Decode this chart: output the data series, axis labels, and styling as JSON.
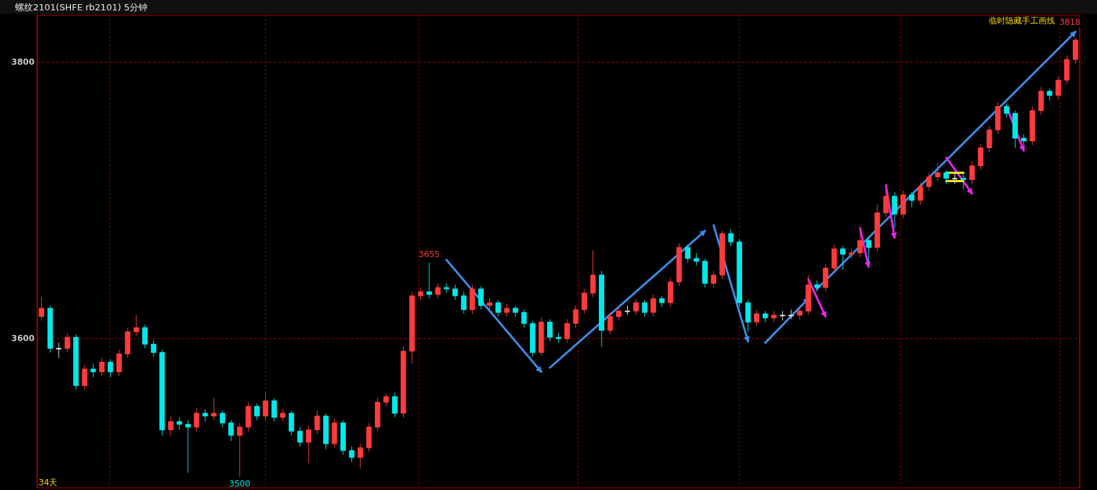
{
  "chart_data": {
    "type": "candlestick",
    "title": "螺纹2101(SHFE rb2101)  5分钟",
    "categories": [
      null,
      null,
      null,
      null,
      null,
      null,
      null,
      null,
      null,
      null,
      null,
      null,
      null,
      null,
      null,
      null,
      null,
      null,
      null,
      null,
      null,
      null,
      null,
      null,
      null,
      null,
      null,
      null,
      null,
      null,
      null,
      null,
      null,
      null,
      null,
      null,
      null,
      null,
      null,
      null,
      null,
      null,
      null,
      null,
      null,
      null,
      null,
      null,
      null,
      null,
      null,
      null,
      null,
      null,
      null,
      null,
      null,
      null,
      null,
      null,
      null,
      null,
      null,
      null,
      null,
      null,
      null,
      null,
      null,
      null,
      null,
      null,
      null,
      null,
      null,
      null,
      null,
      null,
      null,
      null,
      null,
      null,
      null,
      null,
      null,
      null,
      null,
      null,
      null,
      null,
      null,
      null,
      null,
      null,
      null,
      null,
      null,
      null,
      null,
      null,
      null,
      null,
      null,
      null,
      null,
      null,
      null,
      null,
      null,
      null,
      null,
      null,
      null,
      null,
      null,
      null,
      null,
      null,
      null,
      null,
      null
    ],
    "ohlc": [
      [
        3616,
        3630,
        3613,
        3622
      ],
      [
        3622,
        3624,
        3590,
        3593
      ],
      [
        3593,
        3597,
        3586,
        3593
      ],
      [
        3593,
        3604,
        3590,
        3601
      ],
      [
        3601,
        3603,
        3563,
        3566
      ],
      [
        3566,
        3581,
        3563,
        3578
      ],
      [
        3578,
        3582,
        3572,
        3576
      ],
      [
        3576,
        3586,
        3573,
        3583
      ],
      [
        3583,
        3585,
        3572,
        3576
      ],
      [
        3576,
        3592,
        3573,
        3589
      ],
      [
        3589,
        3608,
        3586,
        3605
      ],
      [
        3605,
        3617,
        3602,
        3608
      ],
      [
        3608,
        3610,
        3593,
        3596
      ],
      [
        3596,
        3599,
        3587,
        3590
      ],
      [
        3590,
        3592,
        3530,
        3534
      ],
      [
        3534,
        3544,
        3530,
        3540
      ],
      [
        3540,
        3543,
        3534,
        3538
      ],
      [
        3538,
        3541,
        3503,
        3536
      ],
      [
        3536,
        3550,
        3533,
        3546
      ],
      [
        3546,
        3549,
        3540,
        3544
      ],
      [
        3544,
        3557,
        3541,
        3546
      ],
      [
        3546,
        3548,
        3536,
        3539
      ],
      [
        3539,
        3541,
        3526,
        3530
      ],
      [
        3530,
        3539,
        3500,
        3536
      ],
      [
        3536,
        3554,
        3533,
        3551
      ],
      [
        3551,
        3553,
        3541,
        3544
      ],
      [
        3544,
        3561,
        3541,
        3555
      ],
      [
        3555,
        3557,
        3540,
        3543
      ],
      [
        3543,
        3549,
        3540,
        3546
      ],
      [
        3546,
        3548,
        3530,
        3533
      ],
      [
        3533,
        3536,
        3522,
        3525
      ],
      [
        3525,
        3537,
        3510,
        3534
      ],
      [
        3534,
        3548,
        3531,
        3544
      ],
      [
        3544,
        3546,
        3520,
        3524
      ],
      [
        3524,
        3542,
        3521,
        3539
      ],
      [
        3539,
        3541,
        3516,
        3519
      ],
      [
        3519,
        3522,
        3511,
        3514
      ],
      [
        3514,
        3524,
        3506,
        3521
      ],
      [
        3521,
        3539,
        3518,
        3536
      ],
      [
        3536,
        3557,
        3533,
        3554
      ],
      [
        3554,
        3560,
        3551,
        3558
      ],
      [
        3558,
        3561,
        3543,
        3546
      ],
      [
        3546,
        3594,
        3543,
        3591
      ],
      [
        3591,
        3634,
        3582,
        3631
      ],
      [
        3631,
        3637,
        3628,
        3634
      ],
      [
        3634,
        3655,
        3629,
        3632
      ],
      [
        3632,
        3640,
        3629,
        3637
      ],
      [
        3637,
        3640,
        3633,
        3636
      ],
      [
        3636,
        3639,
        3628,
        3631
      ],
      [
        3631,
        3634,
        3618,
        3621
      ],
      [
        3621,
        3639,
        3618,
        3636
      ],
      [
        3636,
        3638,
        3621,
        3624
      ],
      [
        3624,
        3629,
        3621,
        3626
      ],
      [
        3626,
        3628,
        3616,
        3619
      ],
      [
        3619,
        3625,
        3616,
        3622
      ],
      [
        3622,
        3624,
        3616,
        3619
      ],
      [
        3619,
        3621,
        3608,
        3611
      ],
      [
        3611,
        3613,
        3587,
        3590
      ],
      [
        3590,
        3615,
        3588,
        3612
      ],
      [
        3612,
        3614,
        3598,
        3601
      ],
      [
        3601,
        3604,
        3597,
        3600
      ],
      [
        3600,
        3614,
        3597,
        3611
      ],
      [
        3611,
        3624,
        3608,
        3621
      ],
      [
        3621,
        3636,
        3618,
        3633
      ],
      [
        3633,
        3664,
        3630,
        3646
      ],
      [
        3646,
        3649,
        3594,
        3606
      ],
      [
        3606,
        3619,
        3603,
        3616
      ],
      [
        3616,
        3623,
        3613,
        3620
      ],
      [
        3620,
        3624,
        3617,
        3620
      ],
      [
        3620,
        3629,
        3617,
        3626
      ],
      [
        3626,
        3628,
        3616,
        3619
      ],
      [
        3619,
        3632,
        3616,
        3629
      ],
      [
        3629,
        3631,
        3623,
        3626
      ],
      [
        3626,
        3644,
        3623,
        3641
      ],
      [
        3641,
        3669,
        3638,
        3666
      ],
      [
        3666,
        3668,
        3655,
        3658
      ],
      [
        3658,
        3662,
        3653,
        3656
      ],
      [
        3656,
        3658,
        3637,
        3640
      ],
      [
        3640,
        3649,
        3637,
        3646
      ],
      [
        3646,
        3678,
        3643,
        3676
      ],
      [
        3676,
        3679,
        3667,
        3670
      ],
      [
        3670,
        3672,
        3623,
        3626
      ],
      [
        3626,
        3628,
        3605,
        3612
      ],
      [
        3612,
        3621,
        3609,
        3618
      ],
      [
        3618,
        3620,
        3612,
        3615
      ],
      [
        3615,
        3620,
        3612,
        3617
      ],
      [
        3617,
        3620,
        3613,
        3617
      ],
      [
        3617,
        3621,
        3614,
        3617
      ],
      [
        3617,
        3624,
        3614,
        3620
      ],
      [
        3620,
        3646,
        3617,
        3639
      ],
      [
        3639,
        3642,
        3634,
        3637
      ],
      [
        3637,
        3654,
        3634,
        3651
      ],
      [
        3651,
        3668,
        3648,
        3665
      ],
      [
        3665,
        3667,
        3650,
        3661
      ],
      [
        3661,
        3665,
        3658,
        3662
      ],
      [
        3662,
        3677,
        3659,
        3671
      ],
      [
        3671,
        3673,
        3655,
        3666
      ],
      [
        3666,
        3697,
        3663,
        3691
      ],
      [
        3691,
        3710,
        3688,
        3703
      ],
      [
        3703,
        3706,
        3680,
        3690
      ],
      [
        3690,
        3707,
        3687,
        3704
      ],
      [
        3704,
        3706,
        3695,
        3700
      ],
      [
        3700,
        3713,
        3697,
        3710
      ],
      [
        3710,
        3720,
        3707,
        3717
      ],
      [
        3717,
        3727,
        3714,
        3720
      ],
      [
        3720,
        3722,
        3712,
        3716
      ],
      [
        3716,
        3720,
        3712,
        3716
      ],
      [
        3716,
        3719,
        3708,
        3715
      ],
      [
        3715,
        3728,
        3712,
        3725
      ],
      [
        3725,
        3741,
        3722,
        3738
      ],
      [
        3738,
        3754,
        3735,
        3751
      ],
      [
        3751,
        3771,
        3748,
        3768
      ],
      [
        3768,
        3770,
        3760,
        3763
      ],
      [
        3763,
        3765,
        3738,
        3745
      ],
      [
        3745,
        3748,
        3740,
        3743
      ],
      [
        3743,
        3768,
        3740,
        3765
      ],
      [
        3765,
        3782,
        3762,
        3779
      ],
      [
        3779,
        3781,
        3772,
        3776
      ],
      [
        3776,
        3790,
        3773,
        3787
      ],
      [
        3787,
        3805,
        3784,
        3802
      ],
      [
        3802,
        3818,
        3799,
        3816
      ]
    ],
    "series": [
      {
        "type": "line",
        "color": "#3a8ee6",
        "values": [
          null,
          null,
          null,
          null,
          null,
          null,
          null,
          null,
          null,
          null,
          null,
          null,
          null,
          null,
          null,
          null,
          null,
          null,
          null,
          null,
          null,
          null,
          null,
          null,
          null,
          null,
          null,
          null,
          null,
          null,
          null,
          null,
          null,
          null,
          null,
          null,
          null,
          null,
          null,
          null,
          null,
          null,
          null,
          null,
          null,
          null,
          null,
          3657,
          null,
          null,
          null,
          null,
          null,
          null,
          null,
          null,
          null,
          null,
          3576,
          null,
          null,
          null,
          null,
          null,
          null,
          null,
          null,
          null,
          null,
          null,
          null,
          null,
          null,
          null,
          null,
          null,
          null,
          null,
          null,
          null,
          null,
          null,
          null,
          null,
          null,
          null,
          null,
          null,
          null,
          null,
          null,
          null,
          null,
          null,
          null,
          null,
          null,
          null,
          null,
          null,
          null,
          null,
          null,
          null,
          null,
          null,
          null,
          null,
          null,
          null,
          null,
          null,
          null,
          null,
          null,
          null,
          null,
          null,
          null,
          null,
          null
        ]
      },
      {
        "type": "line",
        "color": "#3a8ee6",
        "values": [
          null,
          null,
          null,
          null,
          null,
          null,
          null,
          null,
          null,
          null,
          null,
          null,
          null,
          null,
          null,
          null,
          null,
          null,
          null,
          null,
          null,
          null,
          null,
          null,
          null,
          null,
          null,
          null,
          null,
          null,
          null,
          null,
          null,
          null,
          null,
          null,
          null,
          null,
          null,
          null,
          null,
          null,
          null,
          null,
          null,
          null,
          null,
          null,
          null,
          null,
          null,
          null,
          null,
          null,
          null,
          null,
          null,
          null,
          null,
          3579,
          null,
          null,
          null,
          null,
          null,
          null,
          null,
          null,
          null,
          null,
          null,
          null,
          null,
          null,
          null,
          null,
          null,
          3678,
          null,
          null,
          null,
          null,
          null,
          null,
          null,
          null,
          null,
          null,
          null,
          null,
          null,
          null,
          null,
          null,
          null,
          null,
          null,
          null,
          null,
          null,
          null,
          null,
          null,
          null,
          null,
          null,
          null,
          null,
          null,
          null,
          null,
          null,
          null,
          null,
          null,
          null,
          null,
          null,
          null,
          null,
          null
        ]
      },
      {
        "type": "line",
        "color": "#3a8ee6",
        "values": [
          null,
          null,
          null,
          null,
          null,
          null,
          null,
          null,
          null,
          null,
          null,
          null,
          null,
          null,
          null,
          null,
          null,
          null,
          null,
          null,
          null,
          null,
          null,
          null,
          null,
          null,
          null,
          null,
          null,
          null,
          null,
          null,
          null,
          null,
          null,
          null,
          null,
          null,
          null,
          null,
          null,
          null,
          null,
          null,
          null,
          null,
          null,
          null,
          null,
          null,
          null,
          null,
          null,
          null,
          null,
          null,
          null,
          null,
          null,
          null,
          null,
          null,
          null,
          null,
          null,
          null,
          null,
          null,
          null,
          null,
          null,
          null,
          null,
          null,
          null,
          null,
          null,
          null,
          3682,
          null,
          null,
          null,
          3598,
          null,
          null,
          null,
          null,
          null,
          null,
          null,
          null,
          null,
          null,
          null,
          null,
          null,
          null,
          null,
          null,
          null,
          null,
          null,
          null,
          null,
          null,
          null,
          null,
          null,
          null,
          null,
          null,
          null,
          null,
          null,
          null,
          null,
          null,
          null,
          null,
          null,
          null
        ]
      },
      {
        "type": "line",
        "color": "#3a8ee6",
        "values": [
          null,
          null,
          null,
          null,
          null,
          null,
          null,
          null,
          null,
          null,
          null,
          null,
          null,
          null,
          null,
          null,
          null,
          null,
          null,
          null,
          null,
          null,
          null,
          null,
          null,
          null,
          null,
          null,
          null,
          null,
          null,
          null,
          null,
          null,
          null,
          null,
          null,
          null,
          null,
          null,
          null,
          null,
          null,
          null,
          null,
          null,
          null,
          null,
          null,
          null,
          null,
          null,
          null,
          null,
          null,
          null,
          null,
          null,
          null,
          null,
          null,
          null,
          null,
          null,
          null,
          null,
          null,
          null,
          null,
          null,
          null,
          null,
          null,
          null,
          null,
          null,
          null,
          null,
          null,
          null,
          null,
          null,
          null,
          null,
          3597,
          null,
          null,
          null,
          null,
          3629,
          null,
          null,
          null,
          null,
          null,
          null,
          null,
          null,
          null,
          null,
          null,
          null,
          null,
          null,
          null,
          null,
          null,
          null,
          null,
          null,
          null,
          null,
          null,
          null,
          null,
          null,
          null,
          null,
          null,
          null,
          null
        ]
      },
      {
        "type": "line",
        "color": "#3a8ee6",
        "values": [
          null,
          null,
          null,
          null,
          null,
          null,
          null,
          null,
          null,
          null,
          null,
          null,
          null,
          null,
          null,
          null,
          null,
          null,
          null,
          null,
          null,
          null,
          null,
          null,
          null,
          null,
          null,
          null,
          null,
          null,
          null,
          null,
          null,
          null,
          null,
          null,
          null,
          null,
          null,
          null,
          null,
          null,
          null,
          null,
          null,
          null,
          null,
          null,
          null,
          null,
          null,
          null,
          null,
          null,
          null,
          null,
          null,
          null,
          null,
          null,
          null,
          null,
          null,
          null,
          null,
          null,
          null,
          null,
          null,
          null,
          null,
          null,
          null,
          null,
          null,
          null,
          null,
          null,
          null,
          null,
          null,
          null,
          null,
          null,
          null,
          null,
          null,
          null,
          null,
          null,
          3636,
          null,
          null,
          null,
          null,
          null,
          null,
          null,
          null,
          null,
          null,
          null,
          null,
          null,
          null,
          null,
          null,
          null,
          null,
          null,
          null,
          null,
          null,
          null,
          null,
          null,
          null,
          null,
          null,
          null,
          3822
        ]
      },
      {
        "type": "line",
        "color": "#ee22ee",
        "values": [
          null,
          null,
          null,
          null,
          null,
          null,
          null,
          null,
          null,
          null,
          null,
          null,
          null,
          null,
          null,
          null,
          null,
          null,
          null,
          null,
          null,
          null,
          null,
          null,
          null,
          null,
          null,
          null,
          null,
          null,
          null,
          null,
          null,
          null,
          null,
          null,
          null,
          null,
          null,
          null,
          null,
          null,
          null,
          null,
          null,
          null,
          null,
          null,
          null,
          null,
          null,
          null,
          null,
          null,
          null,
          null,
          null,
          null,
          null,
          null,
          null,
          null,
          null,
          null,
          null,
          null,
          null,
          null,
          null,
          null,
          null,
          null,
          null,
          null,
          null,
          null,
          null,
          null,
          null,
          null,
          null,
          null,
          null,
          null,
          null,
          null,
          null,
          null,
          null,
          3643,
          null,
          3616,
          null,
          null,
          null,
          null,
          null,
          null,
          null,
          null,
          null,
          null,
          null,
          null,
          null,
          null,
          null,
          null,
          null,
          null,
          null,
          null,
          null,
          null,
          null,
          null,
          null,
          null,
          null,
          null,
          null
        ]
      },
      {
        "type": "line",
        "color": "#ee22ee",
        "values": [
          null,
          null,
          null,
          null,
          null,
          null,
          null,
          null,
          null,
          null,
          null,
          null,
          null,
          null,
          null,
          null,
          null,
          null,
          null,
          null,
          null,
          null,
          null,
          null,
          null,
          null,
          null,
          null,
          null,
          null,
          null,
          null,
          null,
          null,
          null,
          null,
          null,
          null,
          null,
          null,
          null,
          null,
          null,
          null,
          null,
          null,
          null,
          null,
          null,
          null,
          null,
          null,
          null,
          null,
          null,
          null,
          null,
          null,
          null,
          null,
          null,
          null,
          null,
          null,
          null,
          null,
          null,
          null,
          null,
          null,
          null,
          null,
          null,
          null,
          null,
          null,
          null,
          null,
          null,
          null,
          null,
          null,
          null,
          null,
          null,
          null,
          null,
          null,
          null,
          null,
          null,
          null,
          null,
          null,
          null,
          3680,
          3652,
          null,
          null,
          null,
          null,
          null,
          null,
          null,
          null,
          null,
          null,
          null,
          null,
          null,
          null,
          null,
          null,
          null,
          null,
          null,
          null,
          null,
          null,
          null,
          null
        ]
      },
      {
        "type": "line",
        "color": "#ee22ee",
        "values": [
          null,
          null,
          null,
          null,
          null,
          null,
          null,
          null,
          null,
          null,
          null,
          null,
          null,
          null,
          null,
          null,
          null,
          null,
          null,
          null,
          null,
          null,
          null,
          null,
          null,
          null,
          null,
          null,
          null,
          null,
          null,
          null,
          null,
          null,
          null,
          null,
          null,
          null,
          null,
          null,
          null,
          null,
          null,
          null,
          null,
          null,
          null,
          null,
          null,
          null,
          null,
          null,
          null,
          null,
          null,
          null,
          null,
          null,
          null,
          null,
          null,
          null,
          null,
          null,
          null,
          null,
          null,
          null,
          null,
          null,
          null,
          null,
          null,
          null,
          null,
          null,
          null,
          null,
          null,
          null,
          null,
          null,
          null,
          null,
          null,
          null,
          null,
          null,
          null,
          null,
          null,
          null,
          null,
          null,
          null,
          null,
          null,
          null,
          3711,
          3673,
          null,
          null,
          null,
          null,
          null,
          null,
          null,
          null,
          null,
          null,
          null,
          null,
          null,
          null,
          null,
          null,
          null,
          null,
          null,
          null,
          null
        ]
      },
      {
        "type": "line",
        "color": "#ee22ee",
        "values": [
          null,
          null,
          null,
          null,
          null,
          null,
          null,
          null,
          null,
          null,
          null,
          null,
          null,
          null,
          null,
          null,
          null,
          null,
          null,
          null,
          null,
          null,
          null,
          null,
          null,
          null,
          null,
          null,
          null,
          null,
          null,
          null,
          null,
          null,
          null,
          null,
          null,
          null,
          null,
          null,
          null,
          null,
          null,
          null,
          null,
          null,
          null,
          null,
          null,
          null,
          null,
          null,
          null,
          null,
          null,
          null,
          null,
          null,
          null,
          null,
          null,
          null,
          null,
          null,
          null,
          null,
          null,
          null,
          null,
          null,
          null,
          null,
          null,
          null,
          null,
          null,
          null,
          null,
          null,
          null,
          null,
          null,
          null,
          null,
          null,
          null,
          null,
          null,
          null,
          null,
          null,
          null,
          null,
          null,
          null,
          null,
          null,
          null,
          null,
          null,
          null,
          null,
          null,
          null,
          null,
          3731,
          null,
          null,
          3705,
          null,
          null,
          null,
          null,
          null,
          null,
          null,
          null,
          null,
          null,
          null,
          null
        ]
      },
      {
        "type": "line",
        "color": "#ee22ee",
        "values": [
          null,
          null,
          null,
          null,
          null,
          null,
          null,
          null,
          null,
          null,
          null,
          null,
          null,
          null,
          null,
          null,
          null,
          null,
          null,
          null,
          null,
          null,
          null,
          null,
          null,
          null,
          null,
          null,
          null,
          null,
          null,
          null,
          null,
          null,
          null,
          null,
          null,
          null,
          null,
          null,
          null,
          null,
          null,
          null,
          null,
          null,
          null,
          null,
          null,
          null,
          null,
          null,
          null,
          null,
          null,
          null,
          null,
          null,
          null,
          null,
          null,
          null,
          null,
          null,
          null,
          null,
          null,
          null,
          null,
          null,
          null,
          null,
          null,
          null,
          null,
          null,
          null,
          null,
          null,
          null,
          null,
          null,
          null,
          null,
          null,
          null,
          null,
          null,
          null,
          null,
          null,
          null,
          null,
          null,
          null,
          null,
          null,
          null,
          null,
          null,
          null,
          null,
          null,
          null,
          null,
          null,
          null,
          null,
          null,
          null,
          null,
          null,
          3768,
          null,
          3736,
          null,
          null,
          null,
          null,
          null,
          null
        ]
      },
      {
        "type": "line",
        "color": "#ffff00",
        "values": [
          null,
          null,
          null,
          null,
          null,
          null,
          null,
          null,
          null,
          null,
          null,
          null,
          null,
          null,
          null,
          null,
          null,
          null,
          null,
          null,
          null,
          null,
          null,
          null,
          null,
          null,
          null,
          null,
          null,
          null,
          null,
          null,
          null,
          null,
          null,
          null,
          null,
          null,
          null,
          null,
          null,
          null,
          null,
          null,
          null,
          null,
          null,
          null,
          null,
          null,
          null,
          null,
          null,
          null,
          null,
          null,
          null,
          null,
          null,
          null,
          null,
          null,
          null,
          null,
          null,
          null,
          null,
          null,
          null,
          null,
          null,
          null,
          null,
          null,
          null,
          null,
          null,
          null,
          null,
          null,
          null,
          null,
          null,
          null,
          null,
          null,
          null,
          null,
          null,
          null,
          null,
          null,
          null,
          null,
          null,
          null,
          null,
          null,
          null,
          null,
          null,
          null,
          null,
          null,
          null,
          3720,
          3720,
          3720,
          null,
          null,
          null,
          null,
          null,
          null,
          null,
          null,
          null,
          null,
          null,
          null,
          null
        ]
      },
      {
        "type": "line",
        "color": "#ffff00",
        "values": [
          null,
          null,
          null,
          null,
          null,
          null,
          null,
          null,
          null,
          null,
          null,
          null,
          null,
          null,
          null,
          null,
          null,
          null,
          null,
          null,
          null,
          null,
          null,
          null,
          null,
          null,
          null,
          null,
          null,
          null,
          null,
          null,
          null,
          null,
          null,
          null,
          null,
          null,
          null,
          null,
          null,
          null,
          null,
          null,
          null,
          null,
          null,
          null,
          null,
          null,
          null,
          null,
          null,
          null,
          null,
          null,
          null,
          null,
          null,
          null,
          null,
          null,
          null,
          null,
          null,
          null,
          null,
          null,
          null,
          null,
          null,
          null,
          null,
          null,
          null,
          null,
          null,
          null,
          null,
          null,
          null,
          null,
          null,
          null,
          null,
          null,
          null,
          null,
          null,
          null,
          null,
          null,
          null,
          null,
          null,
          null,
          null,
          null,
          null,
          null,
          null,
          null,
          null,
          null,
          null,
          3714,
          3714,
          3714,
          null,
          null,
          null,
          null,
          null,
          null,
          null,
          null,
          null,
          null,
          null,
          null,
          null
        ]
      }
    ],
    "ylim": [
      3492,
      3834
    ],
    "yticks": [
      3600,
      3800
    ],
    "grid": "y",
    "annotations": [
      "34天",
      "临时隐藏手工画线",
      "3500",
      "3818",
      {
        "text": "3655",
        "y": 3655
      }
    ]
  }
}
